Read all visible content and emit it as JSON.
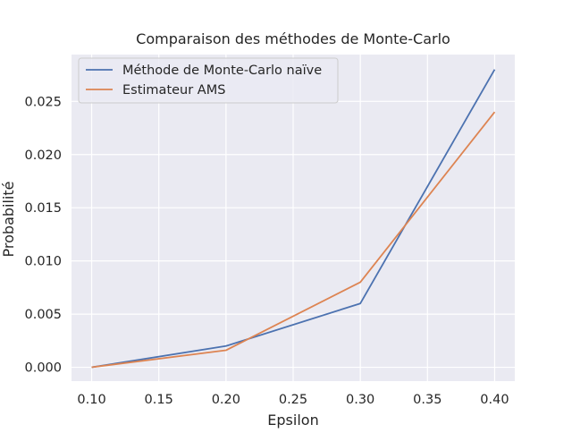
{
  "chart_data": {
    "type": "line",
    "title": "Comparaison des méthodes de Monte-Carlo",
    "xlabel": "Epsilon",
    "ylabel": "Probabilité",
    "x": [
      0.1,
      0.2,
      0.3,
      0.4
    ],
    "series": [
      {
        "name": "Méthode de Monte-Carlo naïve",
        "color": "#4c72b0",
        "values": [
          0.0,
          0.002,
          0.006,
          0.028
        ]
      },
      {
        "name": "Estimateur AMS",
        "color": "#dd8452",
        "values": [
          0.0,
          0.0016,
          0.008,
          0.024
        ]
      }
    ],
    "xlim": [
      0.085,
      0.415
    ],
    "ylim": [
      -0.0013,
      0.0294
    ],
    "x_ticks": [
      "0.10",
      "0.15",
      "0.20",
      "0.25",
      "0.30",
      "0.35",
      "0.40"
    ],
    "y_ticks": [
      "0.000",
      "0.005",
      "0.010",
      "0.015",
      "0.020",
      "0.025"
    ],
    "grid": true,
    "legend_position": "top-left",
    "style": {
      "plot_background": "#eaeaf2",
      "grid_color": "#ffffff",
      "text_color": "#262626"
    }
  }
}
